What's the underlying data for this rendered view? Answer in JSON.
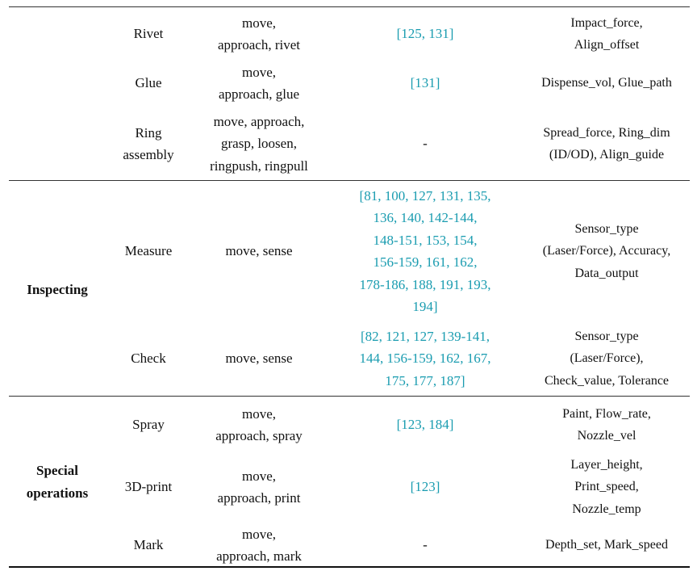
{
  "categories": [
    {
      "label": ""
    },
    {
      "label": "Inspecting"
    },
    {
      "label": "Special\noperations"
    }
  ],
  "rows": [
    {
      "task": "Rivet",
      "primitives": "move,\napproach, rivet",
      "references": "[125, 131]",
      "parameters": "Impact_force,\nAlign_offset"
    },
    {
      "task": "Glue",
      "primitives": "move,\napproach, glue",
      "references": "[131]",
      "parameters": "Dispense_vol, Glue_path"
    },
    {
      "task": "Ring\nassembly",
      "primitives": "move, approach,\ngrasp, loosen,\nringpush, ringpull",
      "references": "-",
      "parameters": "Spread_force, Ring_dim\n(ID/OD), Align_guide"
    },
    {
      "task": "Measure",
      "primitives": "move, sense",
      "references": "[81, 100, 127, 131, 135,\n136, 140, 142-144,\n148-151, 153, 154,\n156-159, 161, 162,\n178-186, 188, 191, 193,\n194]",
      "parameters": "Sensor_type\n(Laser/Force), Accuracy,\nData_output"
    },
    {
      "task": "Check",
      "primitives": "move, sense",
      "references": "[82, 121, 127, 139-141,\n144, 156-159, 162, 167,\n175, 177, 187]",
      "parameters": "Sensor_type\n(Laser/Force),\nCheck_value, Tolerance"
    },
    {
      "task": "Spray",
      "primitives": "move,\napproach, spray",
      "references": "[123, 184]",
      "parameters": "Paint, Flow_rate,\nNozzle_vel"
    },
    {
      "task": "3D-print",
      "primitives": "move,\napproach, print",
      "references": "[123]",
      "parameters": "Layer_height,\nPrint_speed,\nNozzle_temp"
    },
    {
      "task": "Mark",
      "primitives": "move,\napproach, mark",
      "references": "-",
      "parameters": "Depth_set, Mark_speed"
    }
  ]
}
